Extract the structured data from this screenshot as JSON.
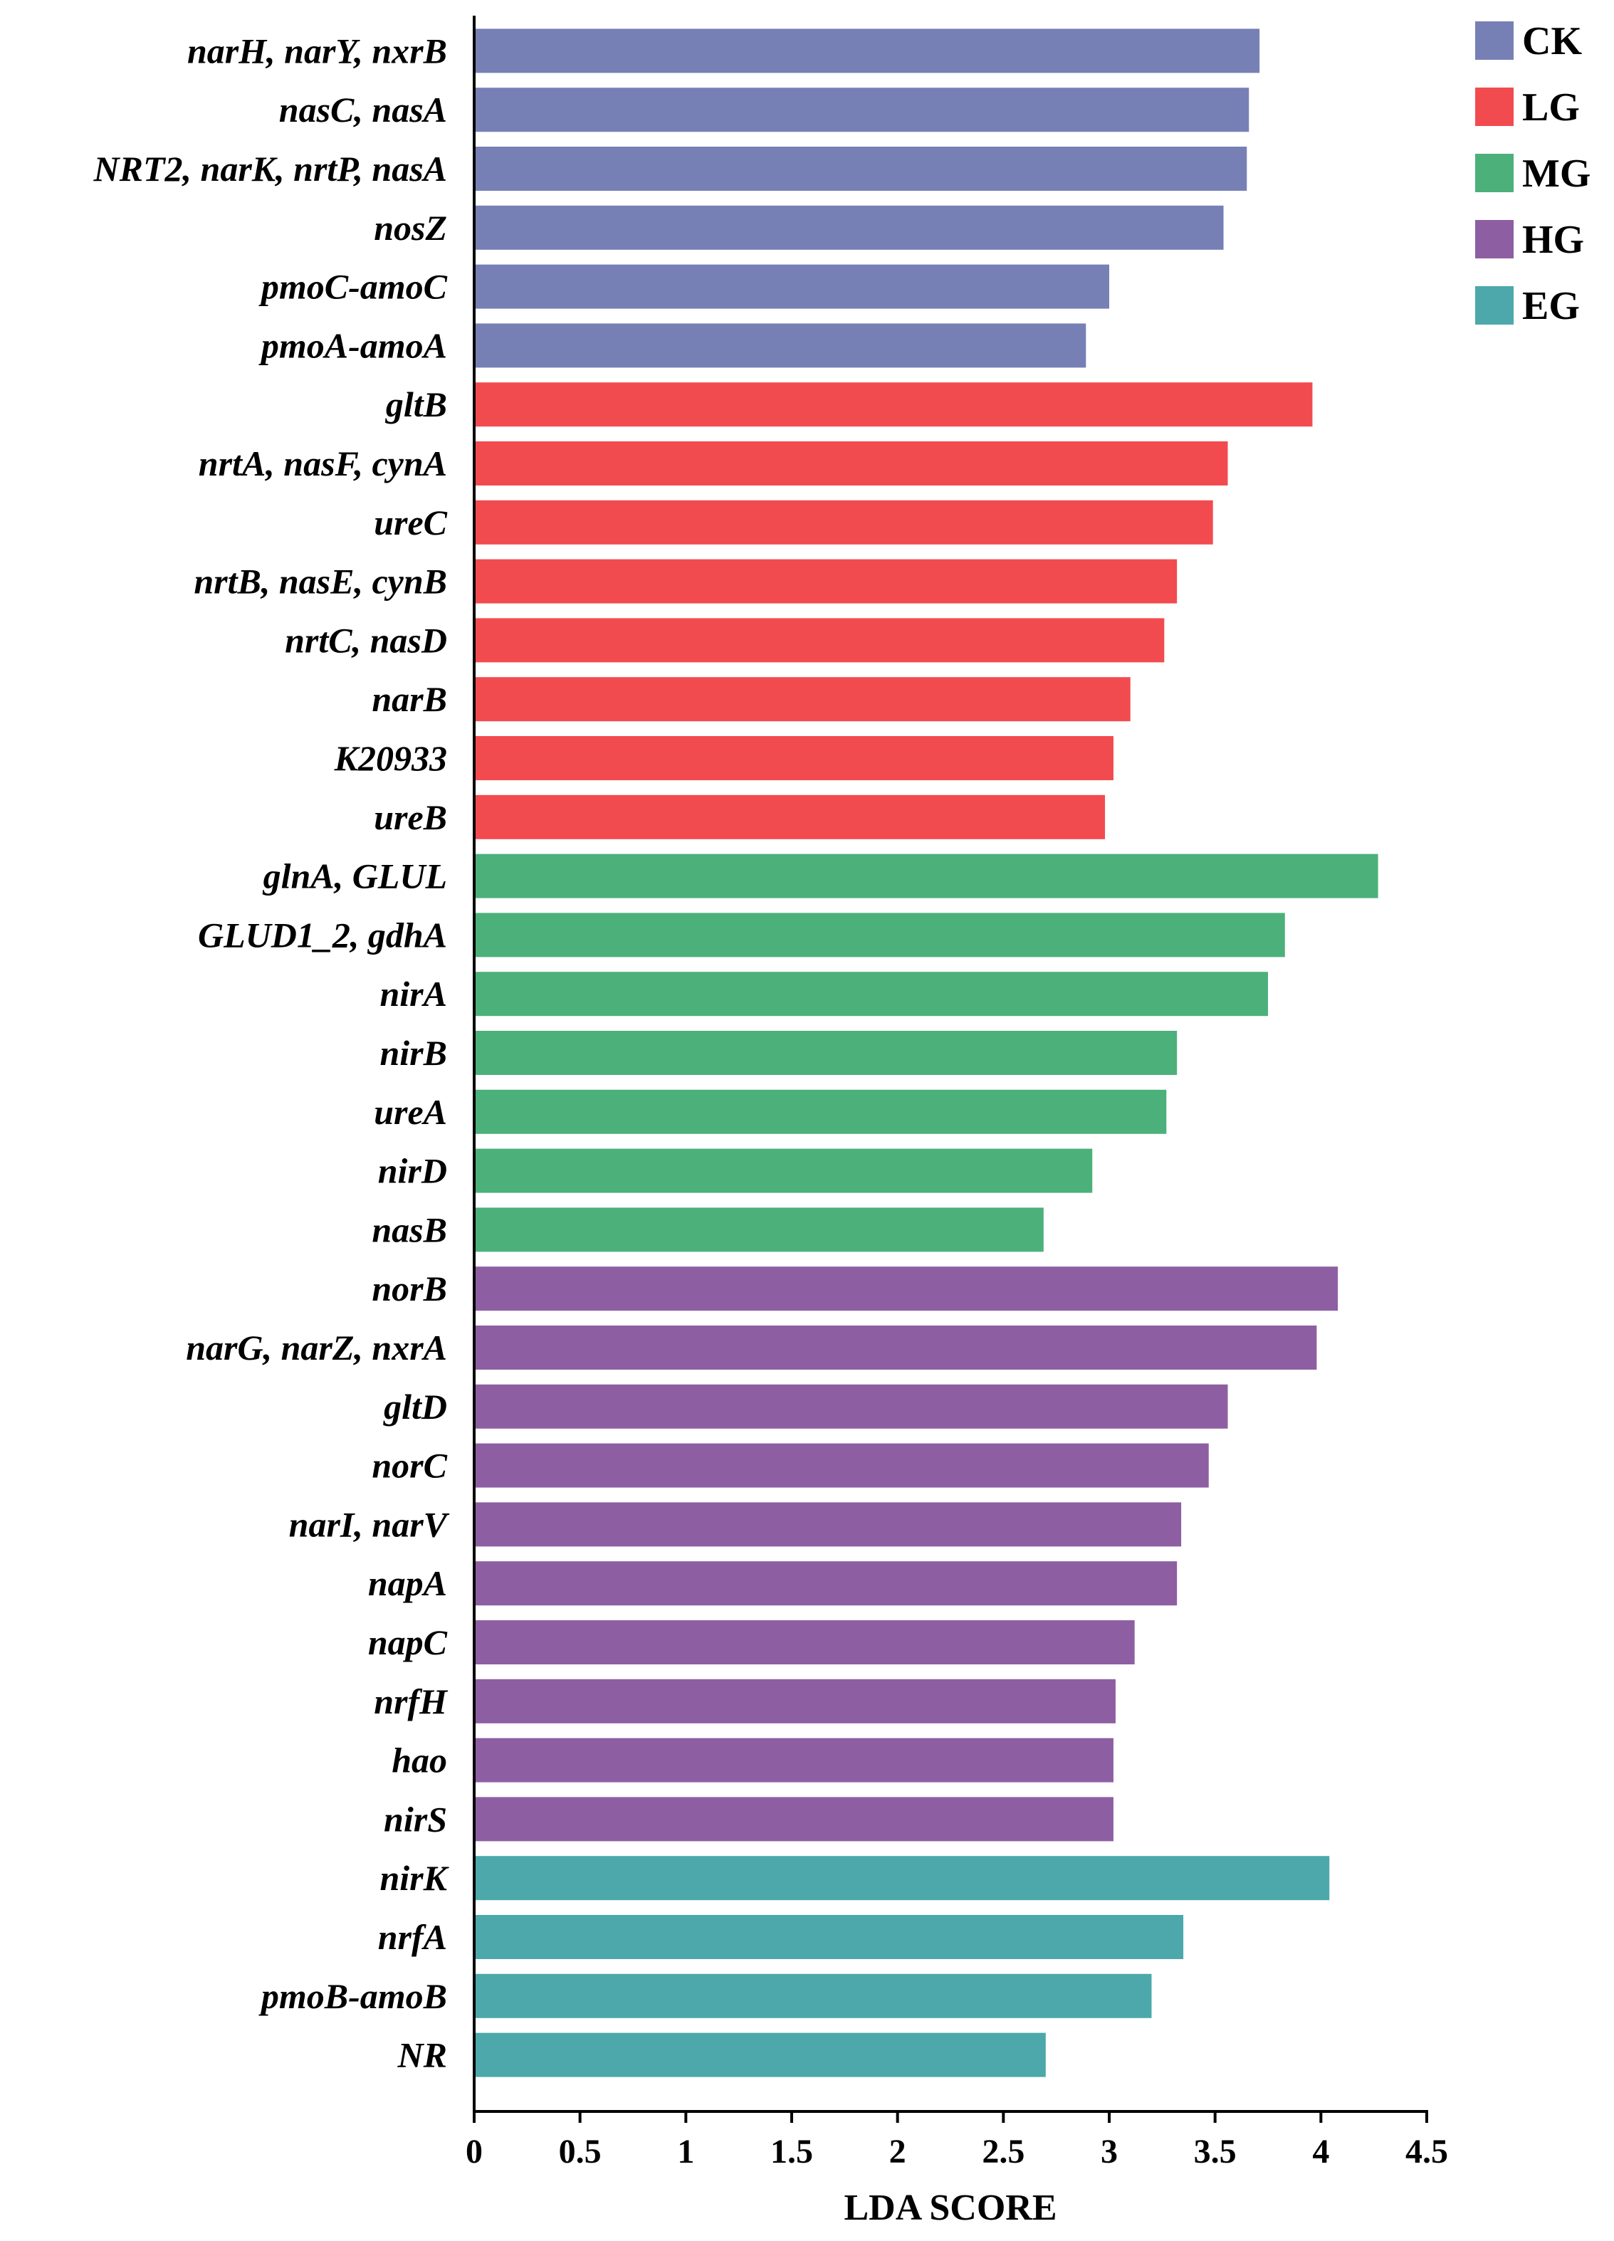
{
  "chart_data": {
    "type": "bar",
    "orientation": "horizontal",
    "xlabel": "LDA SCORE",
    "xlim": [
      0,
      4.5
    ],
    "xticks": [
      "0",
      "0.5",
      "1",
      "1.5",
      "2",
      "2.5",
      "3",
      "3.5",
      "4",
      "4.5"
    ],
    "grid": false,
    "legend_position": "top-right",
    "groups": [
      {
        "name": "CK",
        "color": "#7780b5"
      },
      {
        "name": "LG",
        "color": "#f24b4f"
      },
      {
        "name": "MG",
        "color": "#4cb07a"
      },
      {
        "name": "HG",
        "color": "#8e5ea2"
      },
      {
        "name": "EG",
        "color": "#4ca8aa"
      }
    ],
    "bars": [
      {
        "label": "narH, narY, nxrB",
        "group": "CK",
        "value": 3.71
      },
      {
        "label": "nasC, nasA",
        "group": "CK",
        "value": 3.66
      },
      {
        "label": "NRT2, narK, nrtP, nasA",
        "group": "CK",
        "value": 3.65
      },
      {
        "label": "nosZ",
        "group": "CK",
        "value": 3.54
      },
      {
        "label": "pmoC-amoC",
        "group": "CK",
        "value": 3.0
      },
      {
        "label": "pmoA-amoA",
        "group": "CK",
        "value": 2.89
      },
      {
        "label": "gltB",
        "group": "LG",
        "value": 3.96
      },
      {
        "label": "nrtA, nasF, cynA",
        "group": "LG",
        "value": 3.56
      },
      {
        "label": "ureC",
        "group": "LG",
        "value": 3.49
      },
      {
        "label": "nrtB, nasE, cynB",
        "group": "LG",
        "value": 3.32
      },
      {
        "label": "nrtC, nasD",
        "group": "LG",
        "value": 3.26
      },
      {
        "label": "narB",
        "group": "LG",
        "value": 3.1
      },
      {
        "label": "K20933",
        "group": "LG",
        "value": 3.02
      },
      {
        "label": "ureB",
        "group": "LG",
        "value": 2.98
      },
      {
        "label": "glnA, GLUL",
        "group": "MG",
        "value": 4.27
      },
      {
        "label": "GLUD1_2, gdhA",
        "group": "MG",
        "value": 3.83
      },
      {
        "label": "nirA",
        "group": "MG",
        "value": 3.75
      },
      {
        "label": "nirB",
        "group": "MG",
        "value": 3.32
      },
      {
        "label": "ureA",
        "group": "MG",
        "value": 3.27
      },
      {
        "label": "nirD",
        "group": "MG",
        "value": 2.92
      },
      {
        "label": "nasB",
        "group": "MG",
        "value": 2.69
      },
      {
        "label": "norB",
        "group": "HG",
        "value": 4.08
      },
      {
        "label": "narG, narZ, nxrA",
        "group": "HG",
        "value": 3.98
      },
      {
        "label": "gltD",
        "group": "HG",
        "value": 3.56
      },
      {
        "label": "norC",
        "group": "HG",
        "value": 3.47
      },
      {
        "label": "narI, narV",
        "group": "HG",
        "value": 3.34
      },
      {
        "label": "napA",
        "group": "HG",
        "value": 3.32
      },
      {
        "label": "napC",
        "group": "HG",
        "value": 3.12
      },
      {
        "label": "nrfH",
        "group": "HG",
        "value": 3.03
      },
      {
        "label": "hao",
        "group": "HG",
        "value": 3.02
      },
      {
        "label": "nirS",
        "group": "HG",
        "value": 3.02
      },
      {
        "label": "nirK",
        "group": "EG",
        "value": 4.04
      },
      {
        "label": "nrfA",
        "group": "EG",
        "value": 3.35
      },
      {
        "label": "pmoB-amoB",
        "group": "EG",
        "value": 3.2
      },
      {
        "label": "NR",
        "group": "EG",
        "value": 2.7
      }
    ]
  }
}
